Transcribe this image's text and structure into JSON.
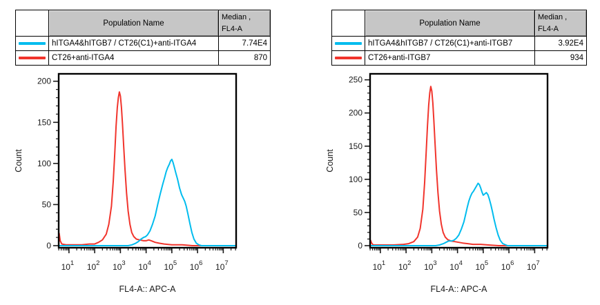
{
  "colors": {
    "cyan": "#00BCEE",
    "red": "#F1342C",
    "axis": "#1a1a1a",
    "header_bg": "#c6c6c6"
  },
  "panels": [
    {
      "table": {
        "header": {
          "population": "Population Name",
          "median_line1": "Median ,",
          "median_line2": "FL4-A"
        },
        "rows": [
          {
            "color": "cyan",
            "name": "hITGA4&hITGB7 / CT26(C1)+anti-ITGA4",
            "median": "7.74E4"
          },
          {
            "color": "red",
            "name": "CT26+anti-ITGA4",
            "median": "870"
          }
        ]
      }
    },
    {
      "table": {
        "header": {
          "population": "Population Name",
          "median_line1": "Median ,",
          "median_line2": "FL4-A"
        },
        "rows": [
          {
            "color": "cyan",
            "name": "hITGA4&hITGB7 / CT26(C1)+anti-ITGB7",
            "median": "3.92E4"
          },
          {
            "color": "red",
            "name": "CT26+anti-ITGB7",
            "median": "934"
          }
        ]
      }
    }
  ],
  "chart_data": [
    {
      "type": "line",
      "title": "",
      "xlabel": "FL4-A:: APC-A",
      "ylabel": "Count",
      "x_scale": "log10",
      "xlim_log": [
        0.6,
        7.5
      ],
      "ylim": [
        0,
        209
      ],
      "yticks": [
        0,
        50,
        100,
        150,
        200
      ],
      "ytick_minor": 10,
      "xticks_decades": [
        1,
        2,
        3,
        4,
        5,
        6,
        7
      ],
      "grid": false,
      "legend_position": "table-above",
      "series": [
        {
          "name": "CT26+anti-ITGA4",
          "color": "red",
          "median_fl4a": 870,
          "points": [
            [
              0.6,
              0
            ],
            [
              0.62,
              15
            ],
            [
              0.66,
              6
            ],
            [
              0.72,
              2
            ],
            [
              0.9,
              1
            ],
            [
              1.2,
              1
            ],
            [
              1.5,
              1
            ],
            [
              1.8,
              2
            ],
            [
              2.0,
              2
            ],
            [
              2.15,
              4
            ],
            [
              2.3,
              7
            ],
            [
              2.45,
              14
            ],
            [
              2.55,
              26
            ],
            [
              2.65,
              48
            ],
            [
              2.72,
              78
            ],
            [
              2.78,
              112
            ],
            [
              2.83,
              145
            ],
            [
              2.88,
              168
            ],
            [
              2.92,
              180
            ],
            [
              2.96,
              187
            ],
            [
              3.0,
              182
            ],
            [
              3.04,
              168
            ],
            [
              3.08,
              148
            ],
            [
              3.13,
              120
            ],
            [
              3.18,
              92
            ],
            [
              3.24,
              64
            ],
            [
              3.3,
              42
            ],
            [
              3.37,
              26
            ],
            [
              3.44,
              16
            ],
            [
              3.52,
              11
            ],
            [
              3.62,
              8
            ],
            [
              3.75,
              7
            ],
            [
              3.9,
              6
            ],
            [
              4.0,
              6
            ],
            [
              4.1,
              7
            ],
            [
              4.2,
              6
            ],
            [
              4.35,
              4
            ],
            [
              4.5,
              3
            ],
            [
              4.7,
              2
            ],
            [
              5.0,
              1
            ],
            [
              5.4,
              1
            ],
            [
              5.8,
              0
            ],
            [
              7.5,
              0
            ]
          ]
        },
        {
          "name": "hITGA4&hITGB7 / CT26(C1)+anti-ITGA4",
          "color": "cyan",
          "median_fl4a": 77400,
          "points": [
            [
              0.6,
              0
            ],
            [
              3.3,
              0
            ],
            [
              3.45,
              1
            ],
            [
              3.6,
              3
            ],
            [
              3.7,
              5
            ],
            [
              3.8,
              8
            ],
            [
              3.9,
              10
            ],
            [
              3.98,
              11
            ],
            [
              4.05,
              13
            ],
            [
              4.15,
              18
            ],
            [
              4.25,
              26
            ],
            [
              4.35,
              36
            ],
            [
              4.45,
              50
            ],
            [
              4.55,
              63
            ],
            [
              4.65,
              75
            ],
            [
              4.72,
              83
            ],
            [
              4.78,
              90
            ],
            [
              4.84,
              95
            ],
            [
              4.9,
              99
            ],
            [
              4.95,
              103
            ],
            [
              5.0,
              105
            ],
            [
              5.05,
              101
            ],
            [
              5.1,
              95
            ],
            [
              5.16,
              88
            ],
            [
              5.22,
              81
            ],
            [
              5.3,
              70
            ],
            [
              5.38,
              62
            ],
            [
              5.44,
              58
            ],
            [
              5.5,
              54
            ],
            [
              5.56,
              48
            ],
            [
              5.63,
              38
            ],
            [
              5.7,
              27
            ],
            [
              5.78,
              16
            ],
            [
              5.86,
              8
            ],
            [
              5.95,
              3
            ],
            [
              6.05,
              1
            ],
            [
              6.15,
              0
            ],
            [
              7.5,
              0
            ]
          ]
        }
      ]
    },
    {
      "type": "line",
      "title": "",
      "xlabel": "FL4-A:: APC-A",
      "ylabel": "Count",
      "x_scale": "log10",
      "xlim_log": [
        0.6,
        7.5
      ],
      "ylim": [
        0,
        259
      ],
      "yticks": [
        0,
        50,
        100,
        150,
        200,
        250
      ],
      "ytick_minor": 10,
      "xticks_decades": [
        1,
        2,
        3,
        4,
        5,
        6,
        7
      ],
      "grid": false,
      "legend_position": "table-above",
      "series": [
        {
          "name": "CT26+anti-ITGB7",
          "color": "red",
          "median_fl4a": 934,
          "points": [
            [
              0.6,
              0
            ],
            [
              0.62,
              8
            ],
            [
              0.66,
              4
            ],
            [
              0.72,
              1
            ],
            [
              1.0,
              1
            ],
            [
              1.5,
              1
            ],
            [
              1.9,
              2
            ],
            [
              2.1,
              3
            ],
            [
              2.3,
              6
            ],
            [
              2.45,
              13
            ],
            [
              2.55,
              26
            ],
            [
              2.65,
              55
            ],
            [
              2.72,
              95
            ],
            [
              2.78,
              140
            ],
            [
              2.83,
              180
            ],
            [
              2.88,
              212
            ],
            [
              2.92,
              230
            ],
            [
              2.96,
              240
            ],
            [
              3.0,
              233
            ],
            [
              3.04,
              215
            ],
            [
              3.08,
              188
            ],
            [
              3.13,
              152
            ],
            [
              3.18,
              115
            ],
            [
              3.24,
              80
            ],
            [
              3.3,
              52
            ],
            [
              3.37,
              32
            ],
            [
              3.44,
              20
            ],
            [
              3.52,
              13
            ],
            [
              3.62,
              9
            ],
            [
              3.75,
              7
            ],
            [
              3.9,
              6
            ],
            [
              4.05,
              5
            ],
            [
              4.2,
              4
            ],
            [
              4.4,
              3
            ],
            [
              4.6,
              2
            ],
            [
              4.9,
              2
            ],
            [
              5.2,
              1
            ],
            [
              5.6,
              0
            ],
            [
              7.5,
              0
            ]
          ]
        },
        {
          "name": "hITGA4&hITGB7 / CT26(C1)+anti-ITGB7",
          "color": "cyan",
          "median_fl4a": 39200,
          "points": [
            [
              0.6,
              0
            ],
            [
              3.15,
              0
            ],
            [
              3.3,
              1
            ],
            [
              3.45,
              3
            ],
            [
              3.55,
              5
            ],
            [
              3.65,
              7
            ],
            [
              3.75,
              7
            ],
            [
              3.85,
              8
            ],
            [
              3.95,
              11
            ],
            [
              4.05,
              16
            ],
            [
              4.15,
              25
            ],
            [
              4.25,
              36
            ],
            [
              4.32,
              48
            ],
            [
              4.38,
              58
            ],
            [
              4.44,
              67
            ],
            [
              4.5,
              74
            ],
            [
              4.56,
              79
            ],
            [
              4.62,
              82
            ],
            [
              4.68,
              86
            ],
            [
              4.74,
              90
            ],
            [
              4.8,
              94
            ],
            [
              4.85,
              92
            ],
            [
              4.9,
              87
            ],
            [
              4.95,
              81
            ],
            [
              5.0,
              76
            ],
            [
              5.06,
              78
            ],
            [
              5.12,
              80
            ],
            [
              5.18,
              77
            ],
            [
              5.24,
              70
            ],
            [
              5.3,
              61
            ],
            [
              5.36,
              51
            ],
            [
              5.42,
              40
            ],
            [
              5.5,
              27
            ],
            [
              5.58,
              16
            ],
            [
              5.66,
              8
            ],
            [
              5.76,
              3
            ],
            [
              5.88,
              1
            ],
            [
              5.95,
              0
            ],
            [
              7.5,
              0
            ]
          ]
        }
      ]
    }
  ]
}
